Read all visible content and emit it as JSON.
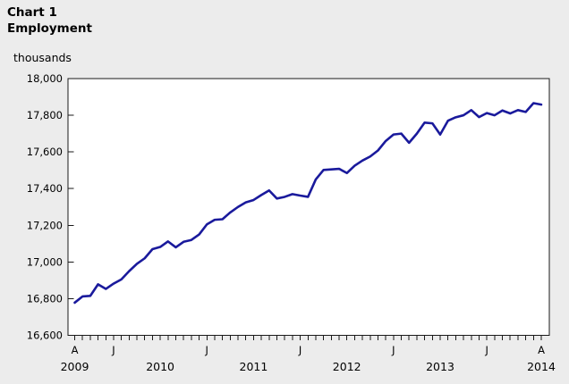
{
  "header": {
    "chart_label": "Chart 1",
    "title": "Employment",
    "unit_label": "thousands"
  },
  "colors": {
    "background": "#ececec",
    "plot_background": "#ffffff",
    "axis": "#1a1a1a",
    "text": "#000000",
    "line": "#1a1a9c"
  },
  "chart_data": {
    "type": "line",
    "title": "Employment",
    "ylabel": "thousands",
    "ylim": [
      16600,
      18000
    ],
    "y_tick_step": 200,
    "y_tick_labels": [
      "16,600",
      "16,800",
      "17,000",
      "17,200",
      "17,400",
      "17,600",
      "17,800",
      "18,000"
    ],
    "grid": false,
    "legend": "none",
    "x_start": "April 2009",
    "x_end": "April 2014",
    "frequency": "monthly",
    "x_month_count": 61,
    "month_labels": [
      {
        "text": "A",
        "pos": 0
      },
      {
        "text": "J",
        "pos": 5
      },
      {
        "text": "J",
        "pos": 17
      },
      {
        "text": "J",
        "pos": 29
      },
      {
        "text": "J",
        "pos": 41
      },
      {
        "text": "J",
        "pos": 53
      },
      {
        "text": "A",
        "pos": 60
      }
    ],
    "year_labels": [
      {
        "text": "2009",
        "pos": 0
      },
      {
        "text": "2010",
        "pos": 11
      },
      {
        "text": "2011",
        "pos": 23
      },
      {
        "text": "2012",
        "pos": 35
      },
      {
        "text": "2013",
        "pos": 47
      },
      {
        "text": "2014",
        "pos": 60
      }
    ],
    "series": [
      {
        "name": "Employment (thousands)",
        "color": "#1a1a9c",
        "values": [
          16778,
          16812,
          16815,
          16878,
          16853,
          16882,
          16905,
          16950,
          16990,
          17020,
          17070,
          17082,
          17112,
          17080,
          17110,
          17120,
          17150,
          17205,
          17230,
          17233,
          17270,
          17300,
          17325,
          17338,
          17365,
          17390,
          17346,
          17355,
          17370,
          17362,
          17355,
          17450,
          17502,
          17505,
          17508,
          17485,
          17525,
          17553,
          17575,
          17608,
          17660,
          17695,
          17700,
          17650,
          17700,
          17760,
          17756,
          17695,
          17770,
          17789,
          17800,
          17828,
          17790,
          17812,
          17800,
          17826,
          17810,
          17828,
          17818,
          17866,
          17858
        ]
      }
    ]
  }
}
